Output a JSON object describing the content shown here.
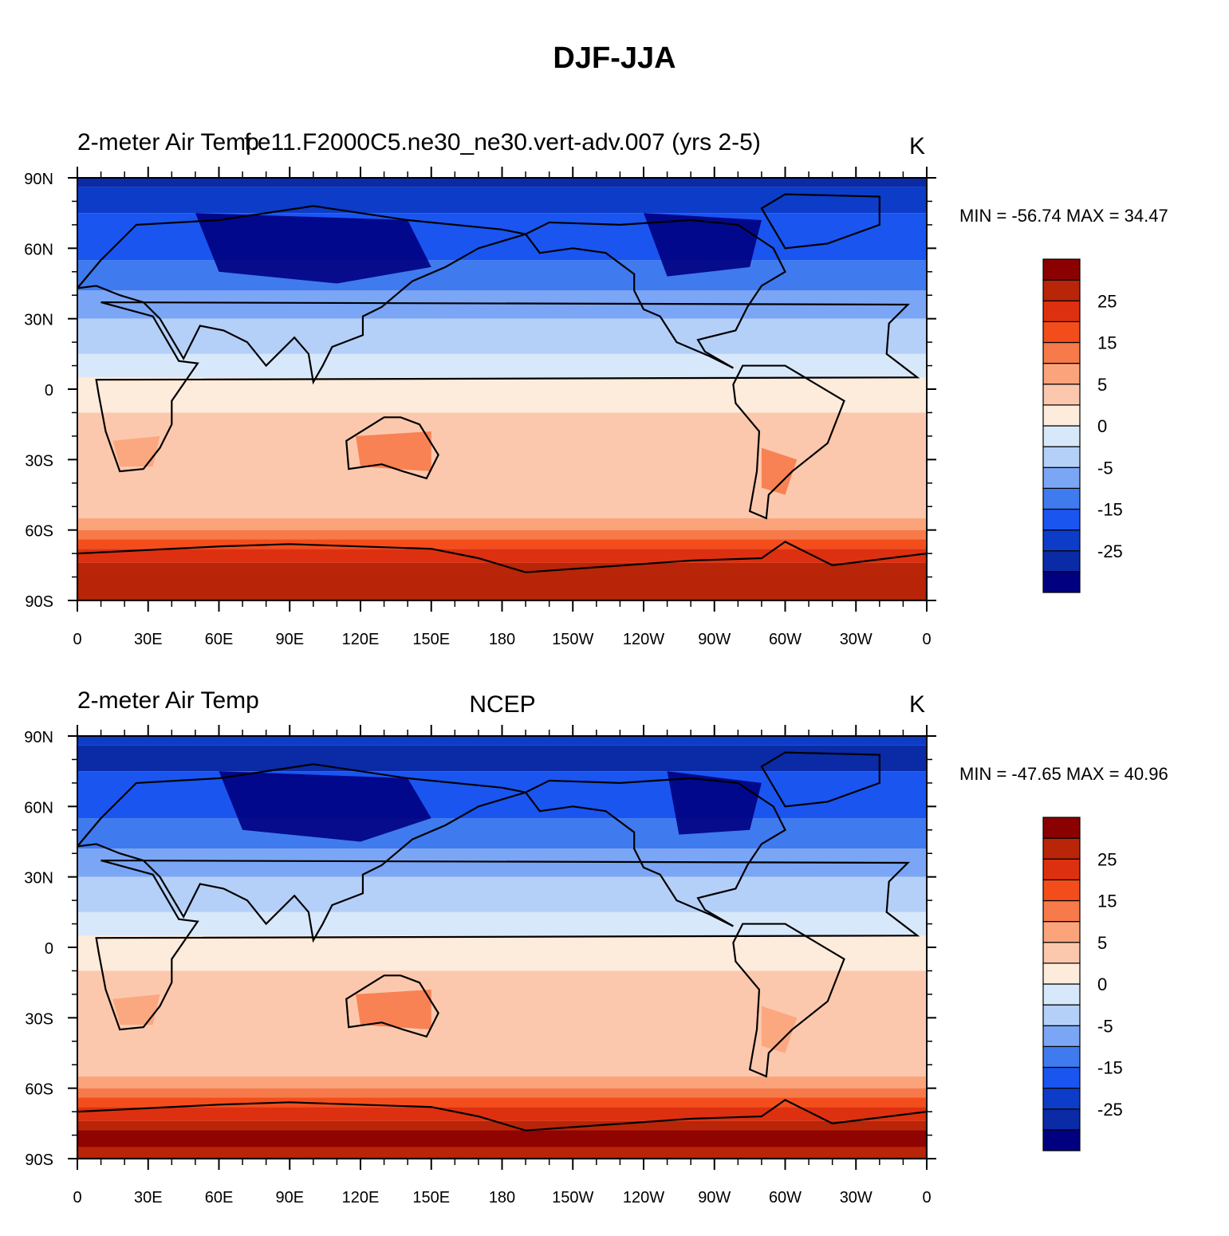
{
  "title": "DJF-JJA",
  "colors": {
    "levels": [
      "#000080",
      "#0a2aa6",
      "#0c3cc8",
      "#1a55f0",
      "#3f7aef",
      "#7ba6f5",
      "#b5d0f8",
      "#d8e8fb",
      "#fdebdb",
      "#fcc8ad",
      "#fba47c",
      "#f77a4a",
      "#f44d1c",
      "#dd3010",
      "#b82508",
      "#8b0000"
    ],
    "coast": "#000000"
  },
  "panels": [
    {
      "id": "model",
      "left_title": "2-meter Air Temp",
      "center_title": "f.e11.F2000C5.ne30_ne30.vert-adv.007 (yrs 2-5)",
      "right_title": "K",
      "minmax": "MIN = -56.74 MAX =  34.47"
    },
    {
      "id": "ncep",
      "left_title": "2-meter Air Temp",
      "center_title": "NCEP",
      "right_title": "K",
      "minmax": "MIN = -47.65 MAX =  40.96"
    }
  ],
  "axes": {
    "lat_ticks": [
      "90N",
      "60N",
      "30N",
      "0",
      "30S",
      "60S",
      "90S"
    ],
    "lon_ticks": [
      "0",
      "30E",
      "60E",
      "90E",
      "120E",
      "150E",
      "180",
      "150W",
      "120W",
      "90W",
      "60W",
      "30W",
      "0"
    ]
  },
  "colorbar": {
    "labels": [
      "25",
      "15",
      "5",
      "0",
      "-5",
      "-15",
      "-25"
    ]
  }
}
